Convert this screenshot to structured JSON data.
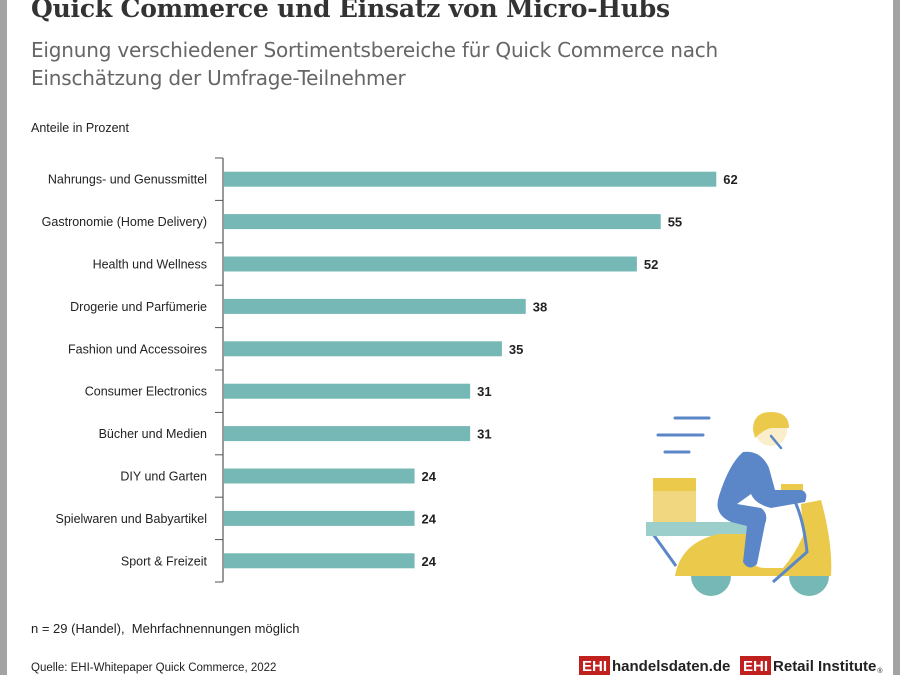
{
  "header": {
    "title": "Quick Commerce und Einsatz von Micro-Hubs",
    "subtitle": "Eignung verschiedener Sortimentsbereiche für Quick Commerce nach Einschätzung der Umfrage-Teilnehmer"
  },
  "colors": {
    "bar": "#75b8b6",
    "text": "#222222",
    "brand_red": "#c0211f",
    "illustration_blue": "#5b87c8",
    "illustration_yellow": "#ebc94a"
  },
  "chart_data": {
    "type": "bar",
    "orientation": "horizontal",
    "title": "Quick Commerce und Einsatz von Micro-Hubs",
    "subtitle": "Eignung verschiedener Sortimentsbereiche für Quick Commerce nach Einschätzung der Umfrage-Teilnehmer",
    "xlabel": "Anteile in Prozent",
    "ylabel": "",
    "categories": [
      "Nahrungs- und Genussmittel",
      "Gastronomie (Home Delivery)",
      "Health und Wellness",
      "Drogerie und Parfümerie",
      "Fashion und Accessoires",
      "Consumer Electronics",
      "Bücher und Medien",
      "DIY und Garten",
      "Spielwaren und Babyartikel",
      "Sport & Freizeit"
    ],
    "values": [
      62,
      55,
      52,
      38,
      35,
      31,
      31,
      24,
      24,
      24
    ],
    "value_labels": [
      "62",
      "55",
      "52",
      "38",
      "35",
      "31",
      "31",
      "24",
      "24",
      "24"
    ],
    "xlim": [
      0,
      100
    ],
    "grid": false,
    "legend": "none"
  },
  "notes": {
    "unit_label": "Anteile in Prozent",
    "footnote": "n = 29 (Handel),  Mehrfachnennungen möglich",
    "source": "Quelle: EHI-Whitepaper Quick Commerce, 2022"
  },
  "logos": {
    "handelsdaten": {
      "box": "EHI",
      "text": "handelsdaten.de"
    },
    "retail_institute": {
      "box": "EHI",
      "text": "Retail Institute",
      "mark": "®"
    }
  },
  "illustration": {
    "icon": "delivery-scooter-icon"
  }
}
